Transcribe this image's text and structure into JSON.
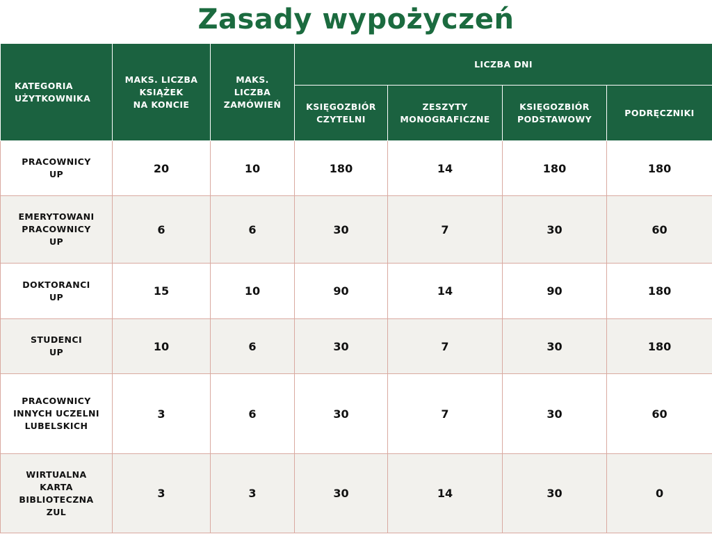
{
  "title": "Zasady wypożyczeń",
  "header": {
    "category": "KATEGORIA\nUŻYTKOWNIKA",
    "max_books": "MAKS. LICZBA\nKSIĄŻEK\nNA KONCIE",
    "max_orders": "MAKS.\nLICZBA\nZAMÓWIEŃ",
    "days_group": "LICZBA DNI",
    "days_cols": [
      "KSIĘGOZBIÓR\nCZYTELNI",
      "ZESZYTY\nMONOGRAFICZNE",
      "KSIĘGOZBIÓR\nPODSTAWOWY",
      "PODRĘCZNIKI"
    ]
  },
  "rows": [
    {
      "category": "PRACOWNICY\nUP",
      "max_books": "20",
      "max_orders": "10",
      "reading_room": "180",
      "monographs": "14",
      "basic": "180",
      "textbooks": "180"
    },
    {
      "category": "EMERYTOWANI\nPRACOWNICY\nUP",
      "max_books": "6",
      "max_orders": "6",
      "reading_room": "30",
      "monographs": "7",
      "basic": "30",
      "textbooks": "60"
    },
    {
      "category": "DOKTORANCI\nUP",
      "max_books": "15",
      "max_orders": "10",
      "reading_room": "90",
      "monographs": "14",
      "basic": "90",
      "textbooks": "180"
    },
    {
      "category": "STUDENCI\nUP",
      "max_books": "10",
      "max_orders": "6",
      "reading_room": "30",
      "monographs": "7",
      "basic": "30",
      "textbooks": "180"
    },
    {
      "category": "PRACOWNICY\nINNYCH UCZELNI\nLUBELSKICH",
      "max_books": "3",
      "max_orders": "6",
      "reading_room": "30",
      "monographs": "7",
      "basic": "30",
      "textbooks": "60"
    },
    {
      "category": "WIRTUALNA\nKARTA\nBIBLIOTECZNA\nZUL",
      "max_books": "3",
      "max_orders": "3",
      "reading_room": "30",
      "monographs": "14",
      "basic": "30",
      "textbooks": "0"
    }
  ]
}
